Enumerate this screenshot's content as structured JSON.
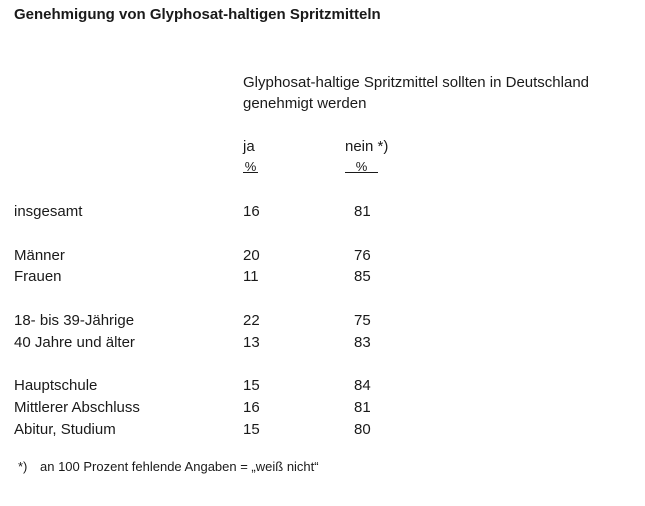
{
  "title": "Genehmigung von Glyphosat-haltigen Spritzmitteln",
  "question": "Glyphosat-haltige Spritzmittel sollten in Deutschland genehmigt werden",
  "columns": {
    "ja": {
      "label": "ja",
      "unit": "%"
    },
    "nein": {
      "label": "nein *)",
      "unit": "%"
    }
  },
  "rows": [
    {
      "label": "insgesamt",
      "ja": "16",
      "nein": "81"
    },
    {
      "label": "Männer",
      "ja": "20",
      "nein": "76"
    },
    {
      "label": "Frauen",
      "ja": "11",
      "nein": "85"
    },
    {
      "label": "18- bis 39-Jährige",
      "ja": "22",
      "nein": "75"
    },
    {
      "label": "40 Jahre und älter",
      "ja": "13",
      "nein": "83"
    },
    {
      "label": "Hauptschule",
      "ja": "15",
      "nein": "84"
    },
    {
      "label": "Mittlerer Abschluss",
      "ja": "16",
      "nein": "81"
    },
    {
      "label": "Abitur, Studium",
      "ja": "15",
      "nein": "80"
    }
  ],
  "footnote": {
    "mark": "*)",
    "text": "an 100 Prozent fehlende Angaben = „weiß nicht“"
  }
}
